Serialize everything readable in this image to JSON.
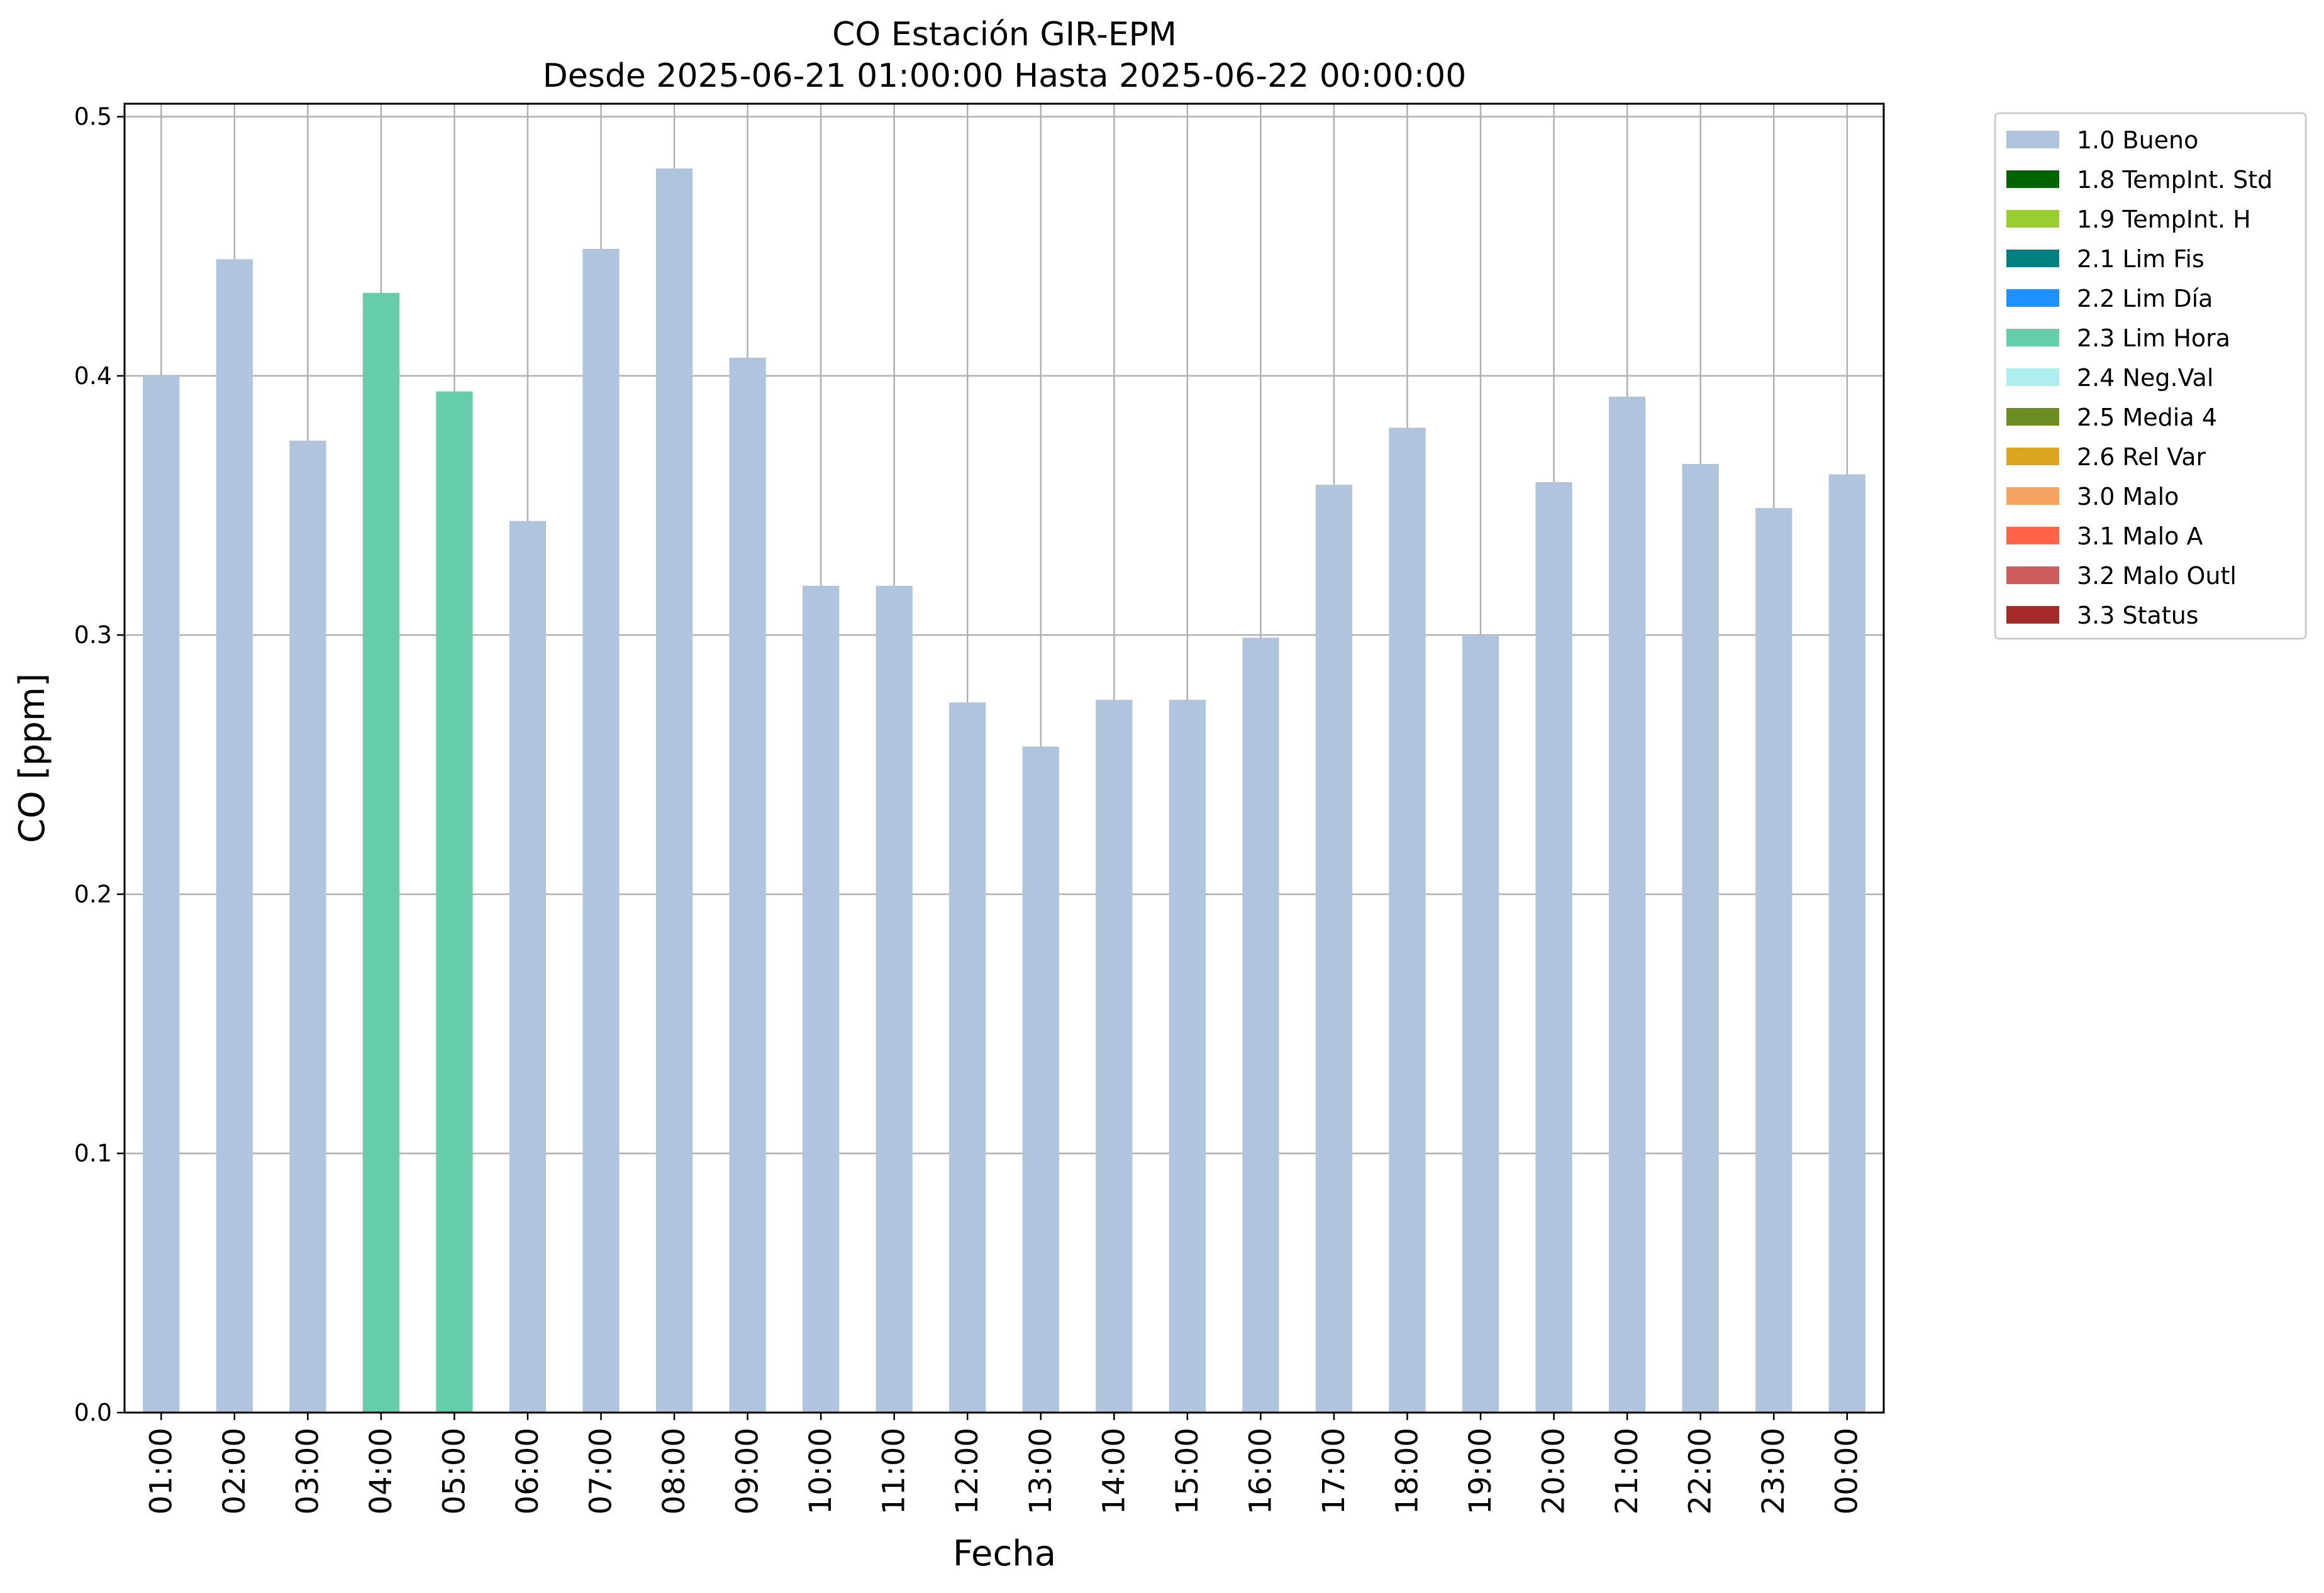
{
  "chart_data": {
    "type": "bar",
    "title": "CO Estación GIR-EPM",
    "subtitle": "Desde 2025-06-21 01:00:00 Hasta 2025-06-22 00:00:00",
    "xlabel": "Fecha",
    "ylabel": "CO [ppm]",
    "ylim": [
      0,
      0.505
    ],
    "yticks": [
      "0.0",
      "0.1",
      "0.2",
      "0.3",
      "0.4",
      "0.5"
    ],
    "grid": true,
    "legend_position": "outside-right",
    "categories": [
      "01:00",
      "02:00",
      "03:00",
      "04:00",
      "05:00",
      "06:00",
      "07:00",
      "08:00",
      "09:00",
      "10:00",
      "11:00",
      "12:00",
      "13:00",
      "14:00",
      "15:00",
      "16:00",
      "17:00",
      "18:00",
      "19:00",
      "20:00",
      "21:00",
      "22:00",
      "23:00",
      "00:00"
    ],
    "values": [
      0.4,
      0.445,
      0.375,
      0.432,
      0.394,
      0.344,
      0.449,
      0.48,
      0.407,
      0.319,
      0.319,
      0.274,
      0.257,
      0.275,
      0.275,
      0.299,
      0.358,
      0.38,
      0.3,
      0.359,
      0.392,
      0.366,
      0.349,
      0.362
    ],
    "flags": [
      "1.0 Bueno",
      "1.0 Bueno",
      "1.0 Bueno",
      "2.3 Lim Hora",
      "2.3 Lim Hora",
      "1.0 Bueno",
      "1.0 Bueno",
      "1.0 Bueno",
      "1.0 Bueno",
      "1.0 Bueno",
      "1.0 Bueno",
      "1.0 Bueno",
      "1.0 Bueno",
      "1.0 Bueno",
      "1.0 Bueno",
      "1.0 Bueno",
      "1.0 Bueno",
      "1.0 Bueno",
      "1.0 Bueno",
      "1.0 Bueno",
      "1.0 Bueno",
      "1.0 Bueno",
      "1.0 Bueno",
      "1.0 Bueno"
    ],
    "legend": [
      {
        "label": "1.0 Bueno",
        "color": "#b0c4de"
      },
      {
        "label": "1.8 TempInt. Std",
        "color": "#006400"
      },
      {
        "label": "1.9 TempInt. H",
        "color": "#9acd32"
      },
      {
        "label": "2.1 Lim Fis",
        "color": "#008080"
      },
      {
        "label": "2.2 Lim Día",
        "color": "#1e90ff"
      },
      {
        "label": "2.3 Lim Hora",
        "color": "#66cdaa"
      },
      {
        "label": "2.4 Neg.Val",
        "color": "#afeeee"
      },
      {
        "label": "2.5 Media 4",
        "color": "#6b8e23"
      },
      {
        "label": "2.6 Rel Var",
        "color": "#daa520"
      },
      {
        "label": "3.0 Malo",
        "color": "#f4a460"
      },
      {
        "label": "3.1 Malo A",
        "color": "#ff6347"
      },
      {
        "label": "3.2 Malo Outl",
        "color": "#cd5c5c"
      },
      {
        "label": "3.3 Status",
        "color": "#a52a2a"
      }
    ]
  }
}
